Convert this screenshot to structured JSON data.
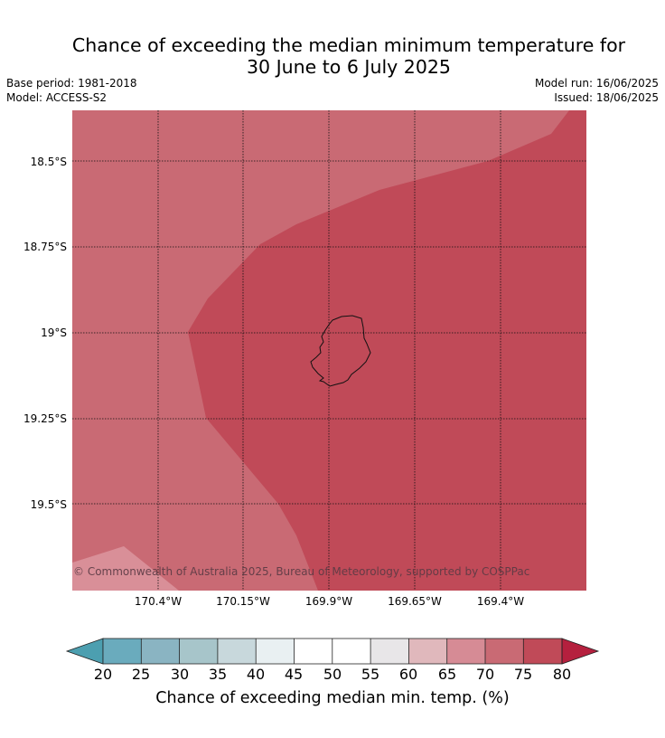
{
  "title": {
    "line1": "Chance of exceeding the median minimum temperature for",
    "line2": "30 June to 6 July 2025"
  },
  "meta": {
    "base_period": "Base period: 1981-2018",
    "model": "Model: ACCESS-S2",
    "model_run": "Model run: 16/06/2025",
    "issued": "Issued: 18/06/2025"
  },
  "map": {
    "lat_labels": [
      "18.5°S",
      "18.75°S",
      "19°S",
      "19.25°S",
      "19.5°S"
    ],
    "lon_labels": [
      "170.4°W",
      "170.15°W",
      "169.9°W",
      "169.65°W",
      "169.4°W"
    ],
    "copyright": "© Commonwealth of Australia 2025, Bureau of Meteorology, supported by COSPPac",
    "colors": {
      "band_70_75": "#c96a74",
      "band_75_80": "#c04a58",
      "band_65_70": "#d98f98"
    }
  },
  "colorbar": {
    "ticks": [
      "20",
      "25",
      "30",
      "35",
      "40",
      "45",
      "50",
      "55",
      "60",
      "65",
      "70",
      "75",
      "80"
    ],
    "colors": [
      "#4c9fb0",
      "#6aabbd",
      "#8ab4c2",
      "#a7c5ca",
      "#c8d8dc",
      "#e9f0f2",
      "#ffffff",
      "#ffffff",
      "#e8e6e8",
      "#e0b8bc",
      "#d68b95",
      "#c96a74",
      "#c04a58",
      "#b5203e"
    ],
    "label": "Chance of exceeding median min. temp. (%)"
  }
}
